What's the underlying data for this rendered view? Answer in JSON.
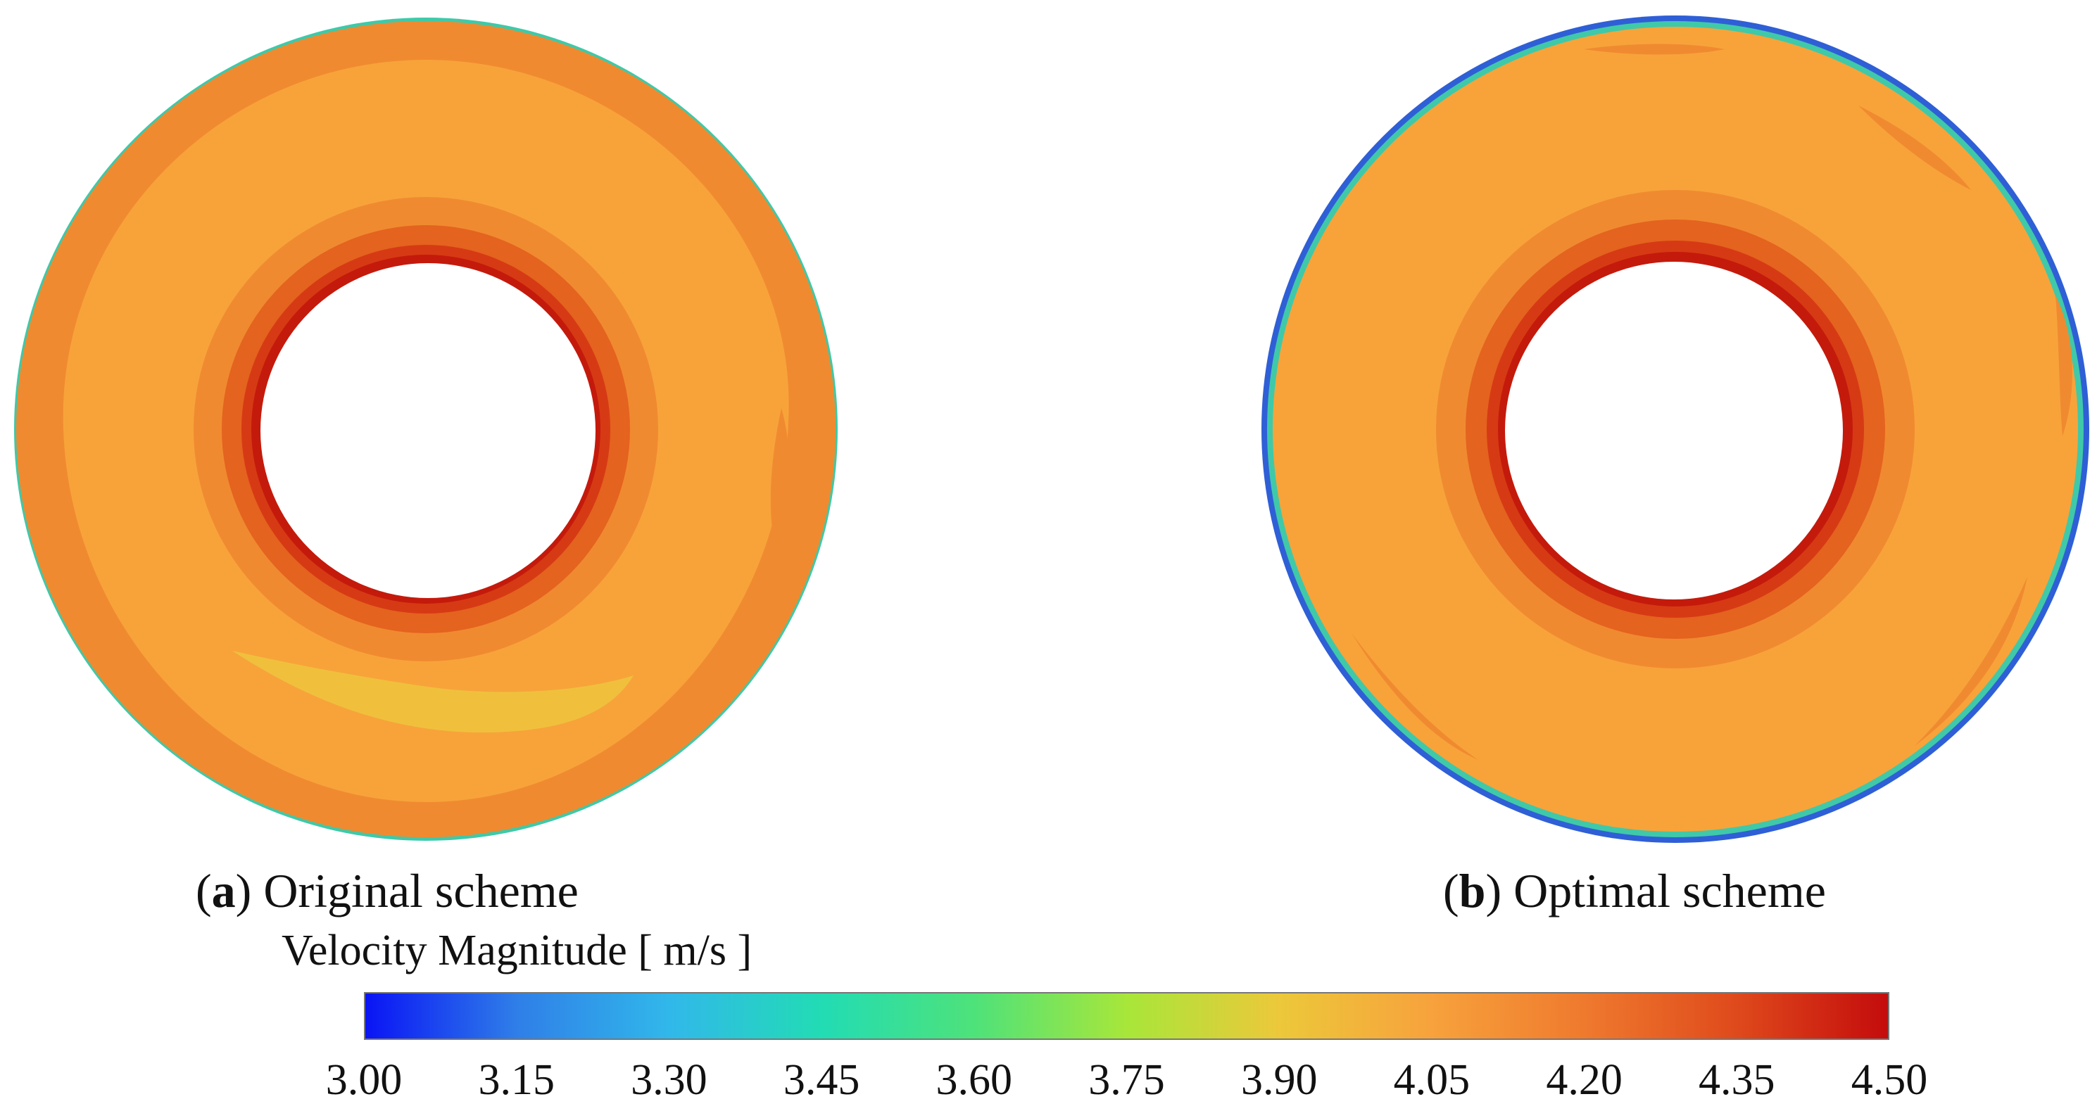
{
  "panels": [
    {
      "letter": "a",
      "label": "Original scheme"
    },
    {
      "letter": "b",
      "label": "Optimal scheme"
    }
  ],
  "colorbar": {
    "title": "Velocity Magnitude [ m/s ]",
    "min": 3.0,
    "max": 4.5,
    "ticks": [
      "3.00",
      "3.15",
      "3.30",
      "3.45",
      "3.60",
      "3.75",
      "3.90",
      "4.05",
      "4.20",
      "4.35",
      "4.50"
    ],
    "stops": [
      "#0a14f5",
      "#2f7fe8",
      "#31b8ea",
      "#22dcb4",
      "#4ee27a",
      "#a8e63a",
      "#ecc83a",
      "#f7a23c",
      "#ef7a2e",
      "#df4a1c",
      "#c40c0c"
    ]
  },
  "colors": {
    "field": "#f7a33a",
    "band_outer": "#f08a30",
    "band_mid": "#e4631f",
    "band_inner": "#d63a14",
    "band_core": "#c41a0c",
    "edge_a": "#3fc9a8",
    "edge_b": "#2f5fd6",
    "pale_zone": "#f0c03c"
  }
}
